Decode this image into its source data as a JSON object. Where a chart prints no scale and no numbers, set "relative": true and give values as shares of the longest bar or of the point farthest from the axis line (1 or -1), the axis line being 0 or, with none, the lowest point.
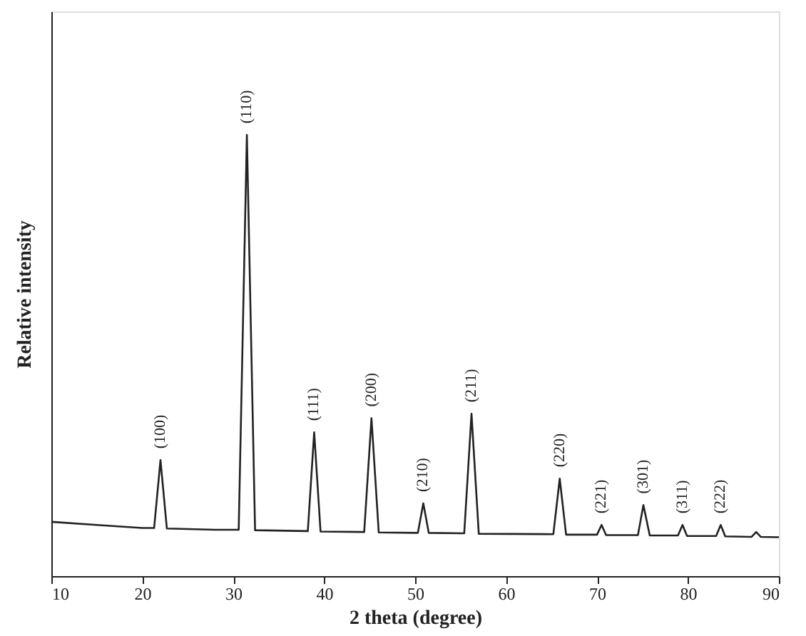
{
  "chart_data": {
    "type": "line",
    "relative": true,
    "xlabel": "2 theta (degree)",
    "ylabel": "Relative intensity",
    "xlim": [
      10,
      90
    ],
    "xticks": [
      10,
      20,
      30,
      40,
      50,
      60,
      70,
      80,
      90
    ],
    "grid": false,
    "marker": "none",
    "line_style": "solid",
    "x": [
      10,
      15,
      20,
      21.3,
      22,
      22.7,
      28,
      30.6,
      31.5,
      32.4,
      38.2,
      38.9,
      39.6,
      44.4,
      45.2,
      46,
      50.3,
      50.9,
      51.5,
      55.4,
      56.2,
      57,
      65.2,
      65.9,
      66.6,
      70,
      70.5,
      71,
      74.5,
      75.1,
      75.8,
      78.9,
      79.4,
      79.9,
      83.1,
      83.6,
      84.1,
      87,
      87.5,
      88,
      90
    ],
    "series": [
      {
        "color": "#222222",
        "values": [
          0.123,
          0.116,
          0.109,
          0.109,
          0.263,
          0.108,
          0.105,
          0.105,
          1,
          0.104,
          0.102,
          0.326,
          0.101,
          0.1,
          0.358,
          0.099,
          0.098,
          0.165,
          0.098,
          0.097,
          0.368,
          0.096,
          0.095,
          0.221,
          0.094,
          0.094,
          0.116,
          0.093,
          0.093,
          0.161,
          0.092,
          0.092,
          0.116,
          0.091,
          0.091,
          0.116,
          0.09,
          0.089,
          0.1,
          0.089,
          0.088
        ]
      }
    ],
    "annotations": [
      {
        "text": "(100)",
        "x": 22,
        "y": 0.263
      },
      {
        "text": "(110)",
        "x": 31.5,
        "y": 1
      },
      {
        "text": "(111)",
        "x": 38.9,
        "y": 0.326
      },
      {
        "text": "(200)",
        "x": 45.2,
        "y": 0.358
      },
      {
        "text": "(210)",
        "x": 50.9,
        "y": 0.165
      },
      {
        "text": "(211)",
        "x": 56.2,
        "y": 0.368
      },
      {
        "text": "(220)",
        "x": 65.9,
        "y": 0.221
      },
      {
        "text": "(221)",
        "x": 70.5,
        "y": 0.116
      },
      {
        "text": "(301)",
        "x": 75.1,
        "y": 0.161
      },
      {
        "text": "(311)",
        "x": 79.4,
        "y": 0.116
      },
      {
        "text": "(222)",
        "x": 83.6,
        "y": 0.116
      }
    ]
  }
}
